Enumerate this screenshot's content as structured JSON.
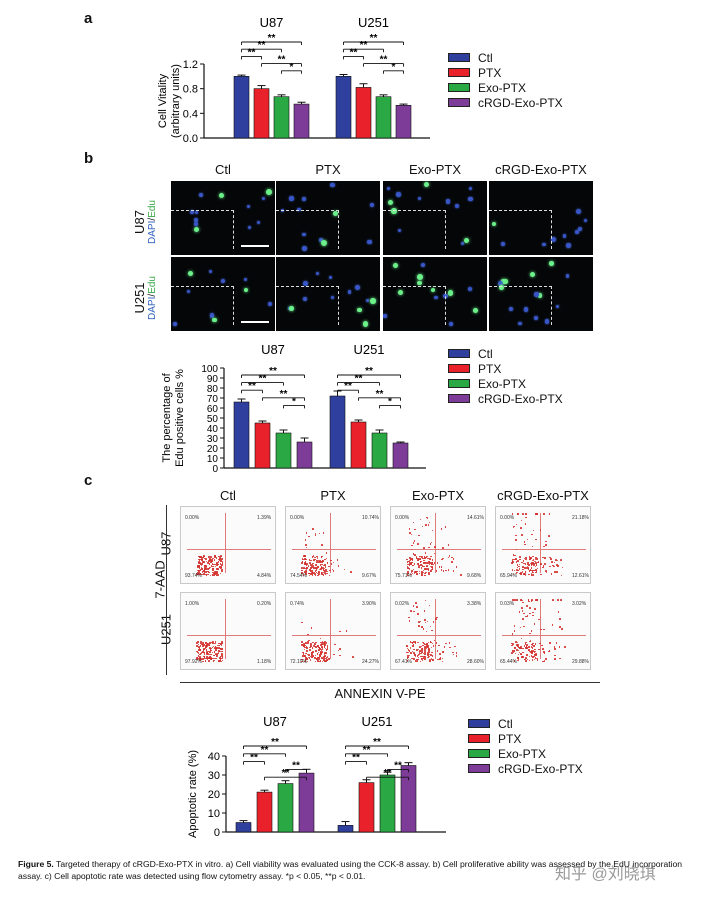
{
  "panels": {
    "a": "a",
    "b": "b",
    "c": "c"
  },
  "colors": {
    "ctl": "#2f3f9e",
    "ptx": "#e8212a",
    "exo": "#29a844",
    "crgd": "#7d3c98"
  },
  "legend": [
    "Ctl",
    "PTX",
    "Exo-PTX",
    "cRGD-Exo-PTX"
  ],
  "chart_data": [
    {
      "type": "bar",
      "panel": "a",
      "groups": [
        "U87",
        "U251"
      ],
      "series": [
        {
          "name": "Ctl",
          "values": [
            1.0,
            1.0
          ],
          "errors": [
            0.02,
            0.03
          ]
        },
        {
          "name": "PTX",
          "values": [
            0.8,
            0.82
          ],
          "errors": [
            0.05,
            0.06
          ]
        },
        {
          "name": "Exo-PTX",
          "values": [
            0.67,
            0.67
          ],
          "errors": [
            0.03,
            0.03
          ]
        },
        {
          "name": "cRGD-Exo-PTX",
          "values": [
            0.55,
            0.53
          ],
          "errors": [
            0.03,
            0.02
          ]
        }
      ],
      "ylabel_lines": [
        "Cell Vitality",
        "(arbitrary units)"
      ],
      "ylim": [
        0,
        1.2
      ],
      "yticks": [
        "0.0",
        "0.4",
        "0.8",
        "1.2"
      ],
      "significance": [
        {
          "from": 0,
          "to": 3,
          "label": "**"
        },
        {
          "from": 0,
          "to": 2,
          "label": "**"
        },
        {
          "from": 0,
          "to": 1,
          "label": "**"
        },
        {
          "from": 1,
          "to": 3,
          "label": "**"
        },
        {
          "from": 2,
          "to": 3,
          "label": "*"
        }
      ]
    },
    {
      "type": "bar",
      "panel": "b",
      "groups": [
        "U87",
        "U251"
      ],
      "series": [
        {
          "name": "Ctl",
          "values": [
            66,
            72
          ],
          "errors": [
            3,
            5
          ]
        },
        {
          "name": "PTX",
          "values": [
            45,
            46
          ],
          "errors": [
            2,
            2
          ]
        },
        {
          "name": "Exo-PTX",
          "values": [
            35,
            35
          ],
          "errors": [
            3,
            3
          ]
        },
        {
          "name": "cRGD-Exo-PTX",
          "values": [
            26,
            25
          ],
          "errors": [
            4,
            1
          ]
        }
      ],
      "ylabel_lines": [
        "The percentage of",
        "Edu positive cells %"
      ],
      "ylim": [
        0,
        100
      ],
      "yticks": [
        "0",
        "10",
        "20",
        "30",
        "40",
        "50",
        "60",
        "70",
        "80",
        "90",
        "100"
      ],
      "significance": [
        {
          "from": 0,
          "to": 3,
          "label": "**"
        },
        {
          "from": 0,
          "to": 2,
          "label": "**"
        },
        {
          "from": 0,
          "to": 1,
          "label": "**"
        },
        {
          "from": 1,
          "to": 3,
          "label": "**"
        },
        {
          "from": 2,
          "to": 3,
          "label": "*"
        }
      ]
    },
    {
      "type": "bar",
      "panel": "c",
      "groups": [
        "U87",
        "U251"
      ],
      "series": [
        {
          "name": "Ctl",
          "values": [
            5,
            3.5
          ],
          "errors": [
            1,
            2
          ]
        },
        {
          "name": "PTX",
          "values": [
            21,
            26
          ],
          "errors": [
            1,
            1.5
          ]
        },
        {
          "name": "Exo-PTX",
          "values": [
            25.5,
            30
          ],
          "errors": [
            1.5,
            1.5
          ]
        },
        {
          "name": "cRGD-Exo-PTX",
          "values": [
            31,
            35
          ],
          "errors": [
            2,
            1.5
          ]
        }
      ],
      "ylabel_lines": [
        "Apoptotic rate (%)"
      ],
      "ylim": [
        0,
        40
      ],
      "yticks": [
        "0",
        "10",
        "20",
        "30",
        "40"
      ],
      "significance": [
        {
          "from": 0,
          "to": 3,
          "label": "**"
        },
        {
          "from": 0,
          "to": 2,
          "label": "**"
        },
        {
          "from": 0,
          "to": 1,
          "label": "**"
        },
        {
          "from": 2,
          "to": 3,
          "label": "**"
        },
        {
          "from": 1,
          "to": 3,
          "label": "**"
        }
      ]
    }
  ],
  "micrographs": {
    "titles": [
      "Ctl",
      "PTX",
      "Exo-PTX",
      "cRGD-Exo-PTX"
    ],
    "rows": [
      {
        "cell": "U87",
        "stain_dapi": "DAPI",
        "stain_sep": "/",
        "stain_edu": "Edu"
      },
      {
        "cell": "U251",
        "stain_dapi": "DAPI",
        "stain_sep": "/",
        "stain_edu": "Edu"
      }
    ]
  },
  "flow": {
    "titles": [
      "Ctl",
      "PTX",
      "Exo-PTX",
      "cRGD-Exo-PTX"
    ],
    "ylabel": "7-AAD",
    "xlabel": "ANNEXIN V-PE",
    "rows": [
      {
        "cell": "U87",
        "plots": [
          {
            "tl": "0.00%",
            "tr": "1.39%",
            "bl": "93.74%",
            "br": "4.84%"
          },
          {
            "tl": "0.00%",
            "tr": "10.74%",
            "bl": "74.54%",
            "br": "9.67%"
          },
          {
            "tl": "0.00%",
            "tr": "14.61%",
            "bl": "75.71%",
            "br": "9.68%"
          },
          {
            "tl": "0.00%",
            "tr": "21.18%",
            "bl": "65.94%",
            "br": "12.61%"
          }
        ]
      },
      {
        "cell": "U251",
        "plots": [
          {
            "tl": "1.00%",
            "tr": "0.20%",
            "bl": "97.92%",
            "br": "1.18%"
          },
          {
            "tl": "0.74%",
            "tr": "3.90%",
            "bl": "72.10%",
            "br": "24.27%"
          },
          {
            "tl": "0.02%",
            "tr": "3.38%",
            "bl": "67.41%",
            "br": "28.60%"
          },
          {
            "tl": "0.03%",
            "tr": "3.02%",
            "bl": "65.44%",
            "br": "29.88%"
          }
        ]
      }
    ]
  },
  "caption": {
    "label": "Figure 5.",
    "text": " Targeted therapy of cRGD-Exo-PTX in vitro. a) Cell viability was evaluated using the CCK-8 assay. b) Cell proliferative ability was assessed by the EdU incorporation assay. c) Cell apoptotic rate was detected using flow cytometry assay. *p < 0.05, **p < 0.01."
  },
  "watermark": "知乎 @刘晓琪"
}
